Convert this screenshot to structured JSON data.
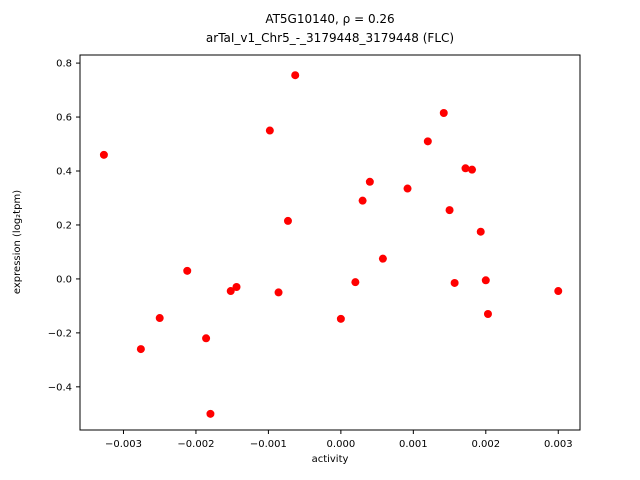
{
  "chart_data": {
    "type": "scatter",
    "title_line1": "AT5G10140, ρ = 0.26",
    "title_line2": "arTaI_v1_Chr5_-_3179448_3179448 (FLC)",
    "xlabel": "activity",
    "ylabel": "expression (log₂tpm)",
    "marker_color": "#ff0000",
    "xlim": [
      -0.0036,
      0.0033
    ],
    "ylim": [
      -0.56,
      0.83
    ],
    "xticks": {
      "values": [
        -0.003,
        -0.002,
        -0.001,
        0.0,
        0.001,
        0.002,
        0.003
      ],
      "labels": [
        "−0.003",
        "−0.002",
        "−0.001",
        "0.000",
        "0.001",
        "0.002",
        "0.003"
      ]
    },
    "yticks": {
      "values": [
        -0.4,
        -0.2,
        0.0,
        0.2,
        0.4,
        0.6,
        0.8
      ],
      "labels": [
        "−0.4",
        "−0.2",
        "0.0",
        "0.2",
        "0.4",
        "0.6",
        "0.8"
      ]
    },
    "grid": false,
    "legend": "none",
    "points": [
      {
        "x": -0.00327,
        "y": 0.46
      },
      {
        "x": -0.00276,
        "y": -0.26
      },
      {
        "x": -0.0025,
        "y": -0.145
      },
      {
        "x": -0.00212,
        "y": 0.03
      },
      {
        "x": -0.00186,
        "y": -0.22
      },
      {
        "x": -0.0018,
        "y": -0.5
      },
      {
        "x": -0.00152,
        "y": -0.045
      },
      {
        "x": -0.00144,
        "y": -0.03
      },
      {
        "x": -0.00098,
        "y": 0.55
      },
      {
        "x": -0.00086,
        "y": -0.05
      },
      {
        "x": -0.00073,
        "y": 0.215
      },
      {
        "x": -0.00063,
        "y": 0.755
      },
      {
        "x": 0.0,
        "y": -0.148
      },
      {
        "x": 0.0002,
        "y": -0.012
      },
      {
        "x": 0.0003,
        "y": 0.29
      },
      {
        "x": 0.0004,
        "y": 0.36
      },
      {
        "x": 0.00058,
        "y": 0.075
      },
      {
        "x": 0.00092,
        "y": 0.335
      },
      {
        "x": 0.0012,
        "y": 0.51
      },
      {
        "x": 0.00142,
        "y": 0.615
      },
      {
        "x": 0.0015,
        "y": 0.255
      },
      {
        "x": 0.00157,
        "y": -0.015
      },
      {
        "x": 0.00172,
        "y": 0.41
      },
      {
        "x": 0.00181,
        "y": 0.405
      },
      {
        "x": 0.00193,
        "y": 0.175
      },
      {
        "x": 0.002,
        "y": -0.005
      },
      {
        "x": 0.00203,
        "y": -0.13
      },
      {
        "x": 0.003,
        "y": -0.045
      }
    ]
  }
}
